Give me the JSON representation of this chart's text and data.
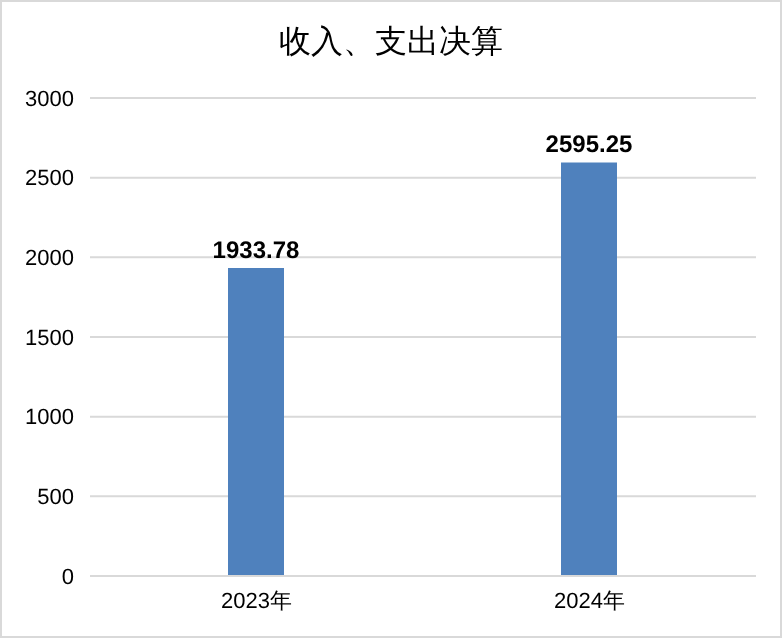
{
  "chart_data": {
    "type": "bar",
    "title": "收入、支出决算",
    "categories": [
      "2023年",
      "2024年"
    ],
    "series": [
      {
        "color": "#4f81bd",
        "values": [
          1933.78,
          2595.25
        ]
      }
    ],
    "ylim": [
      0,
      3000
    ],
    "yticks": [
      0,
      500,
      1000,
      1500,
      2000,
      2500,
      3000
    ],
    "grid": "y",
    "data_labels": true,
    "legend": false
  }
}
